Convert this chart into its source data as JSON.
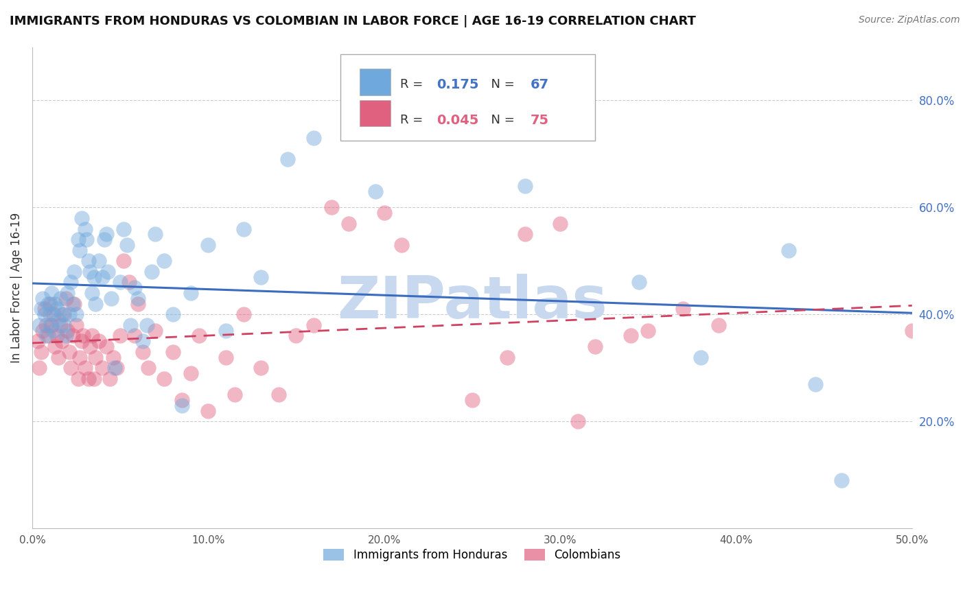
{
  "title": "IMMIGRANTS FROM HONDURAS VS COLOMBIAN IN LABOR FORCE | AGE 16-19 CORRELATION CHART",
  "source": "Source: ZipAtlas.com",
  "ylabel": "In Labor Force | Age 16-19",
  "xlim": [
    0.0,
    0.5
  ],
  "ylim": [
    0.0,
    0.9
  ],
  "xticks": [
    0.0,
    0.1,
    0.2,
    0.3,
    0.4,
    0.5
  ],
  "xticklabels": [
    "0.0%",
    "10.0%",
    "20.0%",
    "30.0%",
    "40.0%",
    "50.0%"
  ],
  "yticks_right": [
    0.2,
    0.4,
    0.6,
    0.8
  ],
  "yticklabels_right": [
    "20.0%",
    "40.0%",
    "60.0%",
    "80.0%"
  ],
  "honduras_color": "#6fa8dc",
  "colombian_color": "#e06080",
  "watermark": "ZIPatlas",
  "watermark_color": "#c8d8ee",
  "honduras_x": [
    0.004,
    0.005,
    0.006,
    0.007,
    0.008,
    0.009,
    0.01,
    0.01,
    0.011,
    0.012,
    0.013,
    0.014,
    0.015,
    0.016,
    0.017,
    0.018,
    0.019,
    0.02,
    0.021,
    0.022,
    0.023,
    0.024,
    0.025,
    0.026,
    0.027,
    0.028,
    0.03,
    0.031,
    0.032,
    0.033,
    0.034,
    0.035,
    0.036,
    0.038,
    0.04,
    0.041,
    0.042,
    0.043,
    0.045,
    0.047,
    0.05,
    0.052,
    0.054,
    0.056,
    0.058,
    0.06,
    0.063,
    0.065,
    0.068,
    0.07,
    0.075,
    0.08,
    0.085,
    0.09,
    0.1,
    0.11,
    0.12,
    0.13,
    0.145,
    0.16,
    0.195,
    0.28,
    0.345,
    0.38,
    0.43,
    0.445,
    0.46
  ],
  "honduras_y": [
    0.38,
    0.41,
    0.43,
    0.4,
    0.36,
    0.42,
    0.4,
    0.38,
    0.44,
    0.37,
    0.42,
    0.41,
    0.39,
    0.43,
    0.4,
    0.38,
    0.36,
    0.44,
    0.4,
    0.46,
    0.42,
    0.48,
    0.4,
    0.54,
    0.52,
    0.58,
    0.56,
    0.54,
    0.5,
    0.48,
    0.44,
    0.47,
    0.42,
    0.5,
    0.47,
    0.54,
    0.55,
    0.48,
    0.43,
    0.3,
    0.46,
    0.56,
    0.53,
    0.38,
    0.45,
    0.43,
    0.35,
    0.38,
    0.48,
    0.55,
    0.5,
    0.4,
    0.23,
    0.44,
    0.53,
    0.37,
    0.56,
    0.47,
    0.69,
    0.73,
    0.63,
    0.64,
    0.46,
    0.32,
    0.52,
    0.27,
    0.09
  ],
  "colombian_x": [
    0.003,
    0.004,
    0.005,
    0.006,
    0.007,
    0.008,
    0.009,
    0.01,
    0.011,
    0.012,
    0.013,
    0.014,
    0.015,
    0.016,
    0.017,
    0.018,
    0.019,
    0.02,
    0.021,
    0.022,
    0.023,
    0.024,
    0.025,
    0.026,
    0.027,
    0.028,
    0.029,
    0.03,
    0.032,
    0.033,
    0.034,
    0.035,
    0.036,
    0.038,
    0.04,
    0.042,
    0.044,
    0.046,
    0.048,
    0.05,
    0.052,
    0.055,
    0.058,
    0.06,
    0.063,
    0.066,
    0.07,
    0.075,
    0.08,
    0.085,
    0.09,
    0.095,
    0.1,
    0.11,
    0.115,
    0.12,
    0.13,
    0.14,
    0.15,
    0.16,
    0.17,
    0.18,
    0.2,
    0.21,
    0.25,
    0.27,
    0.28,
    0.3,
    0.31,
    0.32,
    0.34,
    0.35,
    0.37,
    0.39,
    0.5
  ],
  "colombian_y": [
    0.35,
    0.3,
    0.33,
    0.37,
    0.41,
    0.38,
    0.36,
    0.42,
    0.38,
    0.4,
    0.34,
    0.36,
    0.32,
    0.38,
    0.35,
    0.4,
    0.43,
    0.37,
    0.33,
    0.3,
    0.36,
    0.42,
    0.38,
    0.28,
    0.32,
    0.35,
    0.36,
    0.3,
    0.28,
    0.34,
    0.36,
    0.28,
    0.32,
    0.35,
    0.3,
    0.34,
    0.28,
    0.32,
    0.3,
    0.36,
    0.5,
    0.46,
    0.36,
    0.42,
    0.33,
    0.3,
    0.37,
    0.28,
    0.33,
    0.24,
    0.29,
    0.36,
    0.22,
    0.32,
    0.25,
    0.4,
    0.3,
    0.25,
    0.36,
    0.38,
    0.6,
    0.57,
    0.59,
    0.53,
    0.24,
    0.32,
    0.55,
    0.57,
    0.2,
    0.34,
    0.36,
    0.37,
    0.41,
    0.38,
    0.37
  ]
}
